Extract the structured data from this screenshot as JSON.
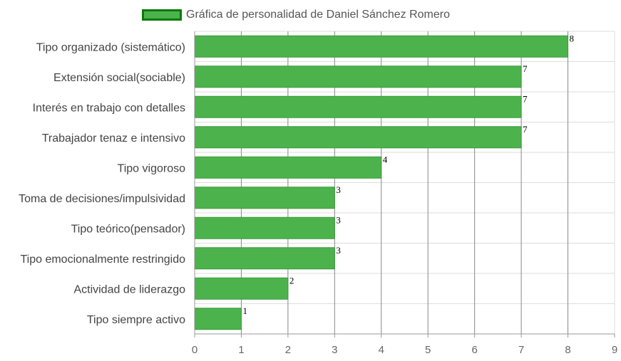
{
  "colors": {
    "bar_fill": "#4cb34c",
    "bar_stroke": "#3a9a3a",
    "legend_border": "#0a7a0a",
    "grid_vertical": "#888888",
    "grid_horizontal": "#dddddd",
    "axis_line": "#999999",
    "category_text": "#444444",
    "tick_text": "#666666",
    "value_label_text": "#000000"
  },
  "chart_data": {
    "type": "bar",
    "orientation": "horizontal",
    "legend_position": "top-center",
    "grid": true,
    "xlim": [
      0,
      9
    ],
    "x_ticks": [
      "0",
      "1",
      "2",
      "3",
      "4",
      "5",
      "6",
      "7",
      "8",
      "9"
    ],
    "categories": [
      "Tipo organizado (sistemático)",
      "Extensión social(sociable)",
      "Interés en trabajo con detalles",
      "Trabajador tenaz e intensivo",
      "Tipo vigoroso",
      "Toma de decisiones/impulsividad",
      "Tipo teórico(pensador)",
      "Tipo emocionalmente restringido",
      "Actividad de liderazgo",
      "Tipo siempre activo"
    ],
    "series": [
      {
        "name": "Gráfica de personalidad de Daniel Sánchez Romero",
        "values": [
          8,
          7,
          7,
          7,
          4,
          3,
          3,
          3,
          2,
          1
        ]
      }
    ],
    "value_labels": [
      "8",
      "7",
      "7",
      "7",
      "4",
      "3",
      "3",
      "3",
      "2",
      "1"
    ]
  }
}
